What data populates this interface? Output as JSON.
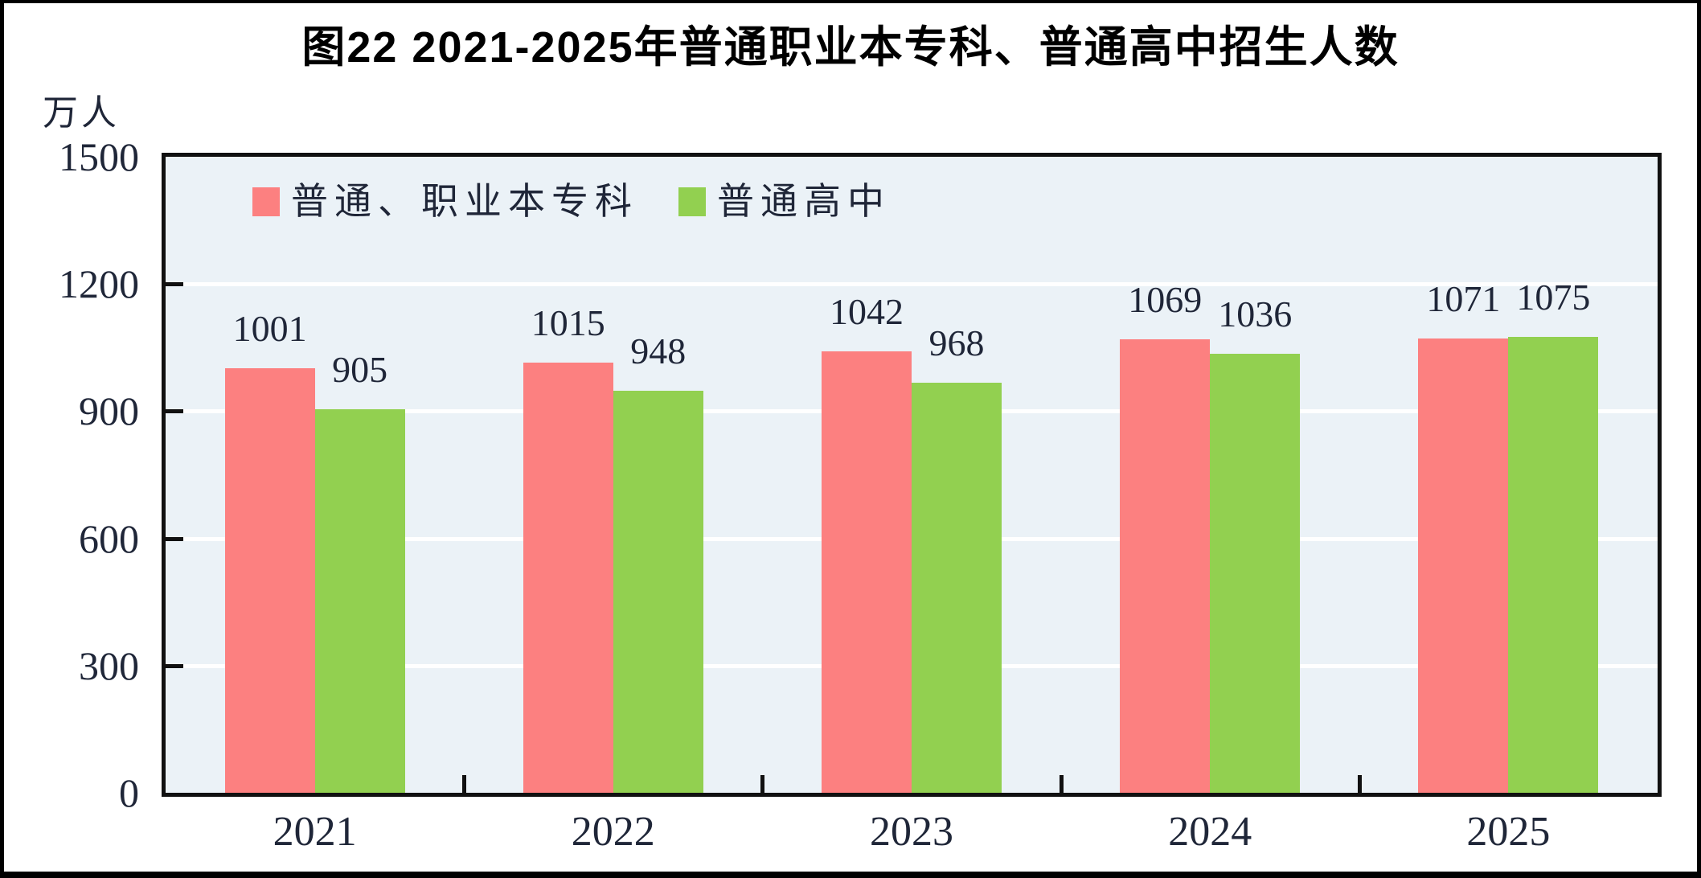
{
  "figure": {
    "title": "图22  2021-2025年普通职业本专科、普通高中招生人数",
    "unit_label": "万人"
  },
  "chart_data": {
    "type": "bar",
    "title": "图22 2021-2025年普通职业本专科、普通高中招生人数",
    "ylabel": "万人",
    "xlabel": "",
    "categories": [
      "2021",
      "2022",
      "2023",
      "2024",
      "2025"
    ],
    "series": [
      {
        "name": "普通、职业本专科",
        "color": "#fc8080",
        "values": [
          1001,
          1015,
          1042,
          1069,
          1071
        ]
      },
      {
        "name": "普通高中",
        "color": "#92d050",
        "values": [
          905,
          948,
          968,
          1036,
          1075
        ]
      }
    ],
    "ylim": [
      0,
      1500
    ],
    "yticks": [
      0,
      300,
      600,
      900,
      1200,
      1500
    ],
    "grid": true,
    "gridline_color": "#ffffff",
    "plot_background": "#ebf2f7",
    "value_labels": true,
    "legend_position": "top-left-inside"
  }
}
